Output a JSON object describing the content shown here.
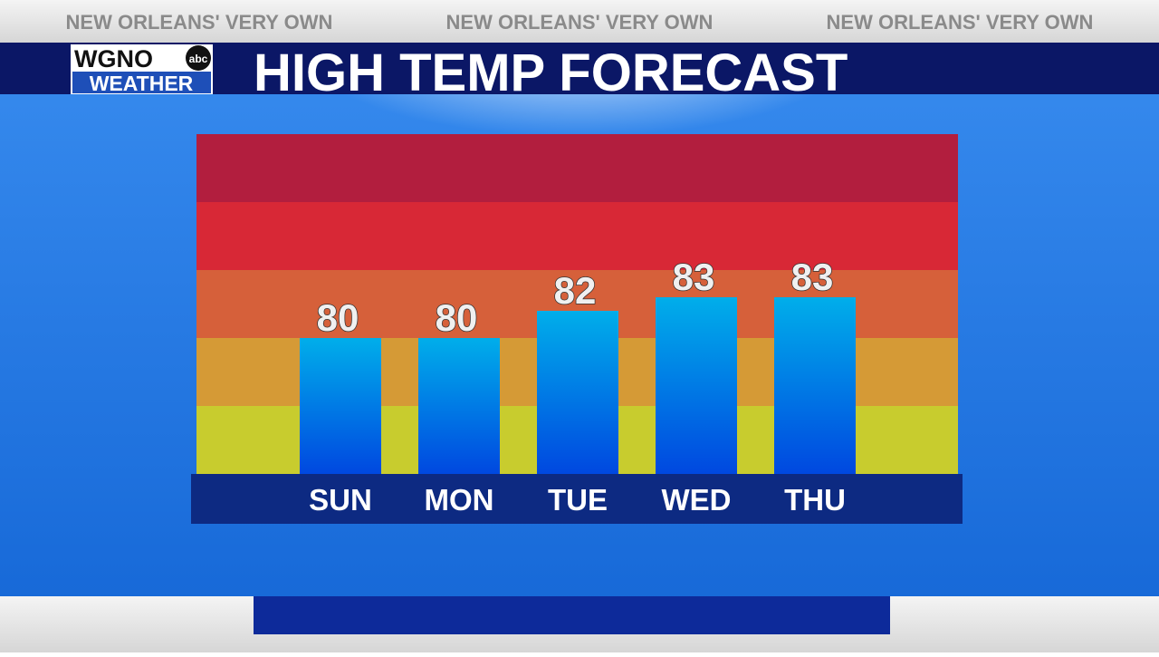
{
  "header": {
    "taglines": [
      "NEW ORLEANS' VERY OWN",
      "NEW ORLEANS' VERY OWN",
      "NEW ORLEANS' VERY OWN"
    ],
    "logo": {
      "station": "WGNO",
      "network": "abc",
      "brand": "WEATHER"
    }
  },
  "chart_data": {
    "type": "bar",
    "title": "HIGH TEMP FORECAST",
    "categories": [
      "SUN",
      "MON",
      "TUE",
      "WED",
      "THU"
    ],
    "values": [
      80,
      80,
      82,
      83,
      83
    ],
    "color": "#0a7ae6",
    "ylim": [
      70,
      95
    ]
  }
}
